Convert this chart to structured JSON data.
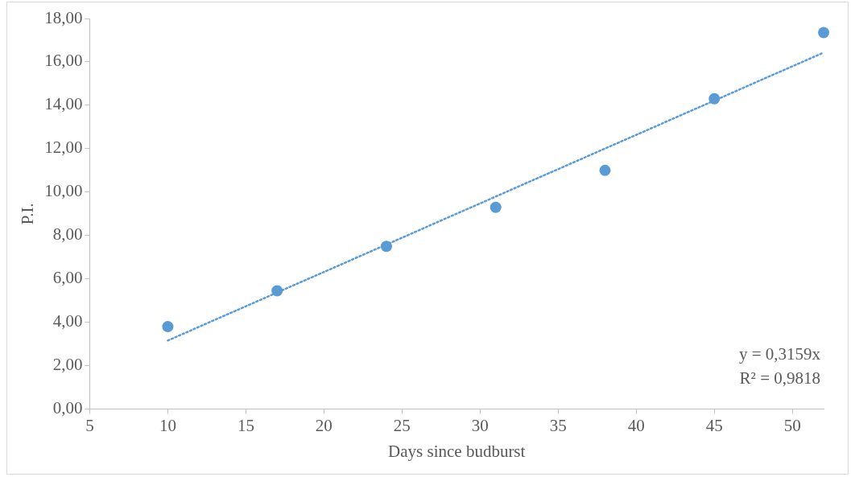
{
  "chart_data": {
    "type": "scatter",
    "xlabel": "Days since budburst",
    "ylabel": "P.I.",
    "x": [
      10,
      17,
      24,
      31,
      38,
      45,
      52
    ],
    "series": [
      {
        "type": "scatter",
        "color": "#5b9bd5",
        "marker": "circle",
        "values": [
          3.8,
          5.45,
          7.5,
          9.3,
          11.0,
          14.3,
          17.35
        ]
      },
      {
        "type": "line",
        "color": "#5b9bd5",
        "marker": "none",
        "line_style": "dotted",
        "x": [
          10,
          52
        ],
        "values": [
          3.16,
          16.43
        ]
      }
    ],
    "xlim": [
      5,
      52
    ],
    "xticks": [
      5,
      10,
      15,
      20,
      25,
      30,
      35,
      40,
      45,
      50
    ],
    "ylim": [
      0,
      18
    ],
    "yticks": [
      {
        "value": 0,
        "label": "0,00"
      },
      {
        "value": 2,
        "label": "2,00"
      },
      {
        "value": 4,
        "label": "4,00"
      },
      {
        "value": 6,
        "label": "6,00"
      },
      {
        "value": 8,
        "label": "8,00"
      },
      {
        "value": 10,
        "label": "10,00"
      },
      {
        "value": 12,
        "label": "12,00"
      },
      {
        "value": 14,
        "label": "14,00"
      },
      {
        "value": 16,
        "label": "16,00"
      },
      {
        "value": 18,
        "label": "18,00"
      }
    ],
    "grid": false,
    "legend": false,
    "annotations": [
      "y = 0,3159x",
      "R² = 0,9818"
    ]
  }
}
